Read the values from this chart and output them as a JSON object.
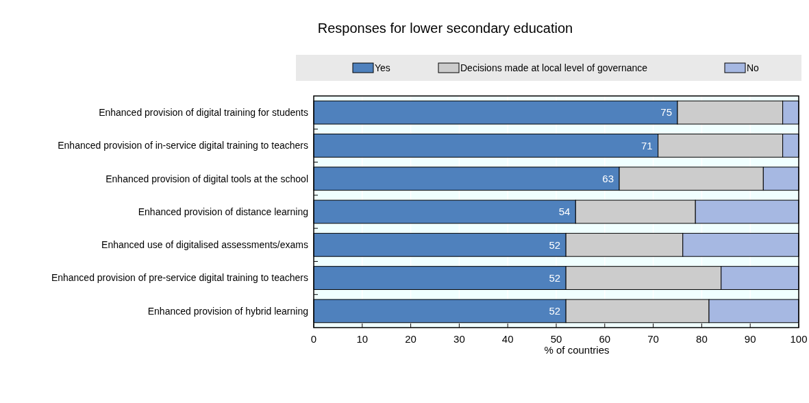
{
  "chart_data": {
    "type": "bar",
    "orientation": "horizontal",
    "stacked": true,
    "title": "Responses for lower secondary education",
    "xlabel": "% of countries",
    "categories": [
      "Enhanced provision of digital training for students",
      "Enhanced provision of in-service digital training to teachers",
      "Enhanced provision of digital tools at the school",
      "Enhanced provision of distance learning",
      "Enhanced use of digitalised assessments/exams",
      "Enhanced provision of pre-service digital training to teachers",
      "Enhanced provision of hybrid learning"
    ],
    "series": [
      {
        "name": "Yes",
        "color": "#4f81bd",
        "values": [
          75,
          71,
          63,
          54,
          52,
          52,
          52
        ],
        "value_labels": [
          "75",
          "71",
          "63",
          "54",
          "52",
          "52",
          "52"
        ]
      },
      {
        "name": "Decisions made at local level of governance",
        "color": "#cccccc",
        "values": [
          21.7,
          25.7,
          29.7,
          24.7,
          24.1,
          32,
          29.5
        ]
      },
      {
        "name": "No",
        "color": "#a6b8e2",
        "values": [
          3.3,
          3.3,
          7.3,
          21.3,
          23.9,
          16,
          18.5
        ]
      }
    ],
    "xlim": [
      0,
      100
    ],
    "xticks": [
      0,
      10,
      20,
      30,
      40,
      50,
      60,
      70,
      80,
      90,
      100
    ],
    "grid": "x",
    "legend": "top"
  }
}
